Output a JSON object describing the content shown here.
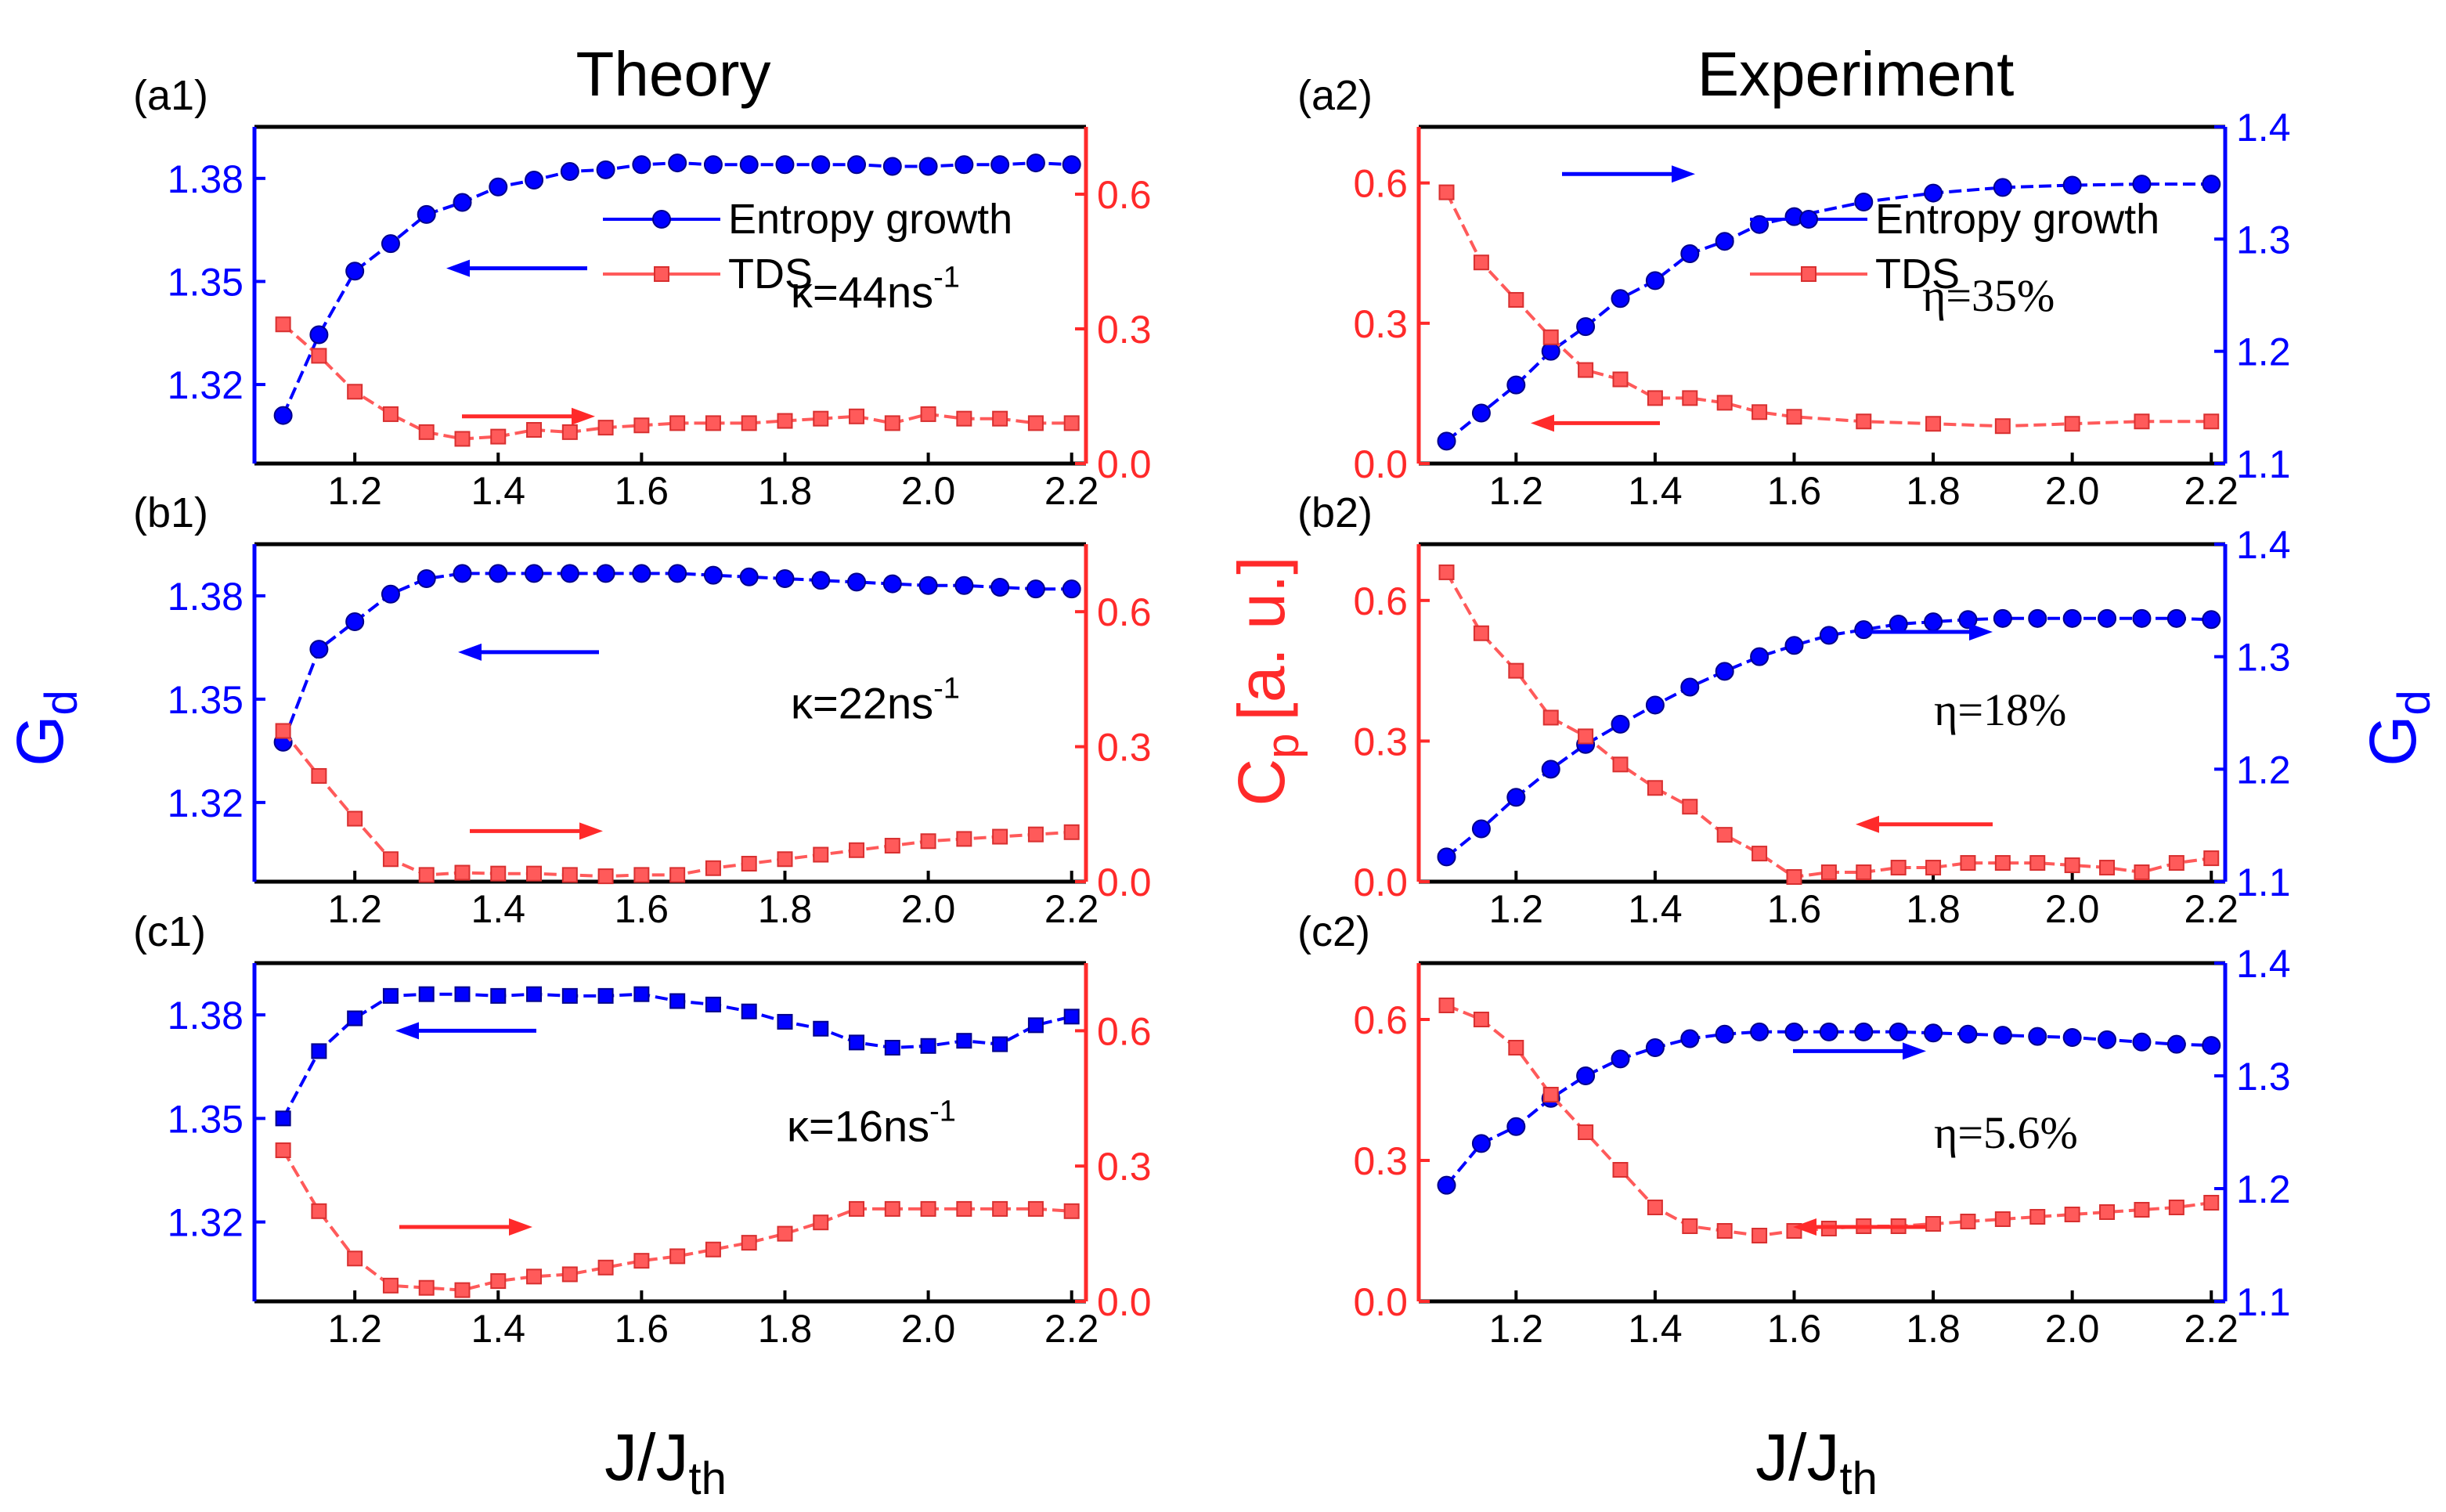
{
  "chart_data": {
    "type": "line",
    "column_titles": [
      "Theory",
      "Experiment"
    ],
    "xlabel": "J/J",
    "xlabel_sub": "th",
    "left_ylabel": "G",
    "left_ylabel_sub": "d",
    "right_ylabel": "C",
    "right_ylabel_sub": "p",
    "right_ylabel_unit": "[a. u.]",
    "panels": [
      {
        "id": "a1",
        "label": "(a1)",
        "annotation": "κ=44ns",
        "annotation_sup": "-1",
        "xlim": [
          1.06,
          2.22
        ],
        "xticks": [
          1.2,
          1.4,
          1.6,
          1.8,
          2.0,
          2.2
        ],
        "blue_axis": "left",
        "blue_ylim": [
          1.297,
          1.395
        ],
        "blue_ticks": [
          1.32,
          1.35,
          1.38
        ],
        "red_ylim": [
          0.0,
          0.75
        ],
        "red_ticks": [
          0.0,
          0.3,
          0.6
        ],
        "blue_marker": "circle",
        "legend": [
          "Entropy growth",
          "TDS"
        ],
        "series": [
          {
            "name": "Entropy growth",
            "color": "#0000ff",
            "x": [
              1.1,
              1.15,
              1.2,
              1.25,
              1.3,
              1.35,
              1.4,
              1.45,
              1.5,
              1.55,
              1.6,
              1.65,
              1.7,
              1.75,
              1.8,
              1.85,
              1.9,
              1.95,
              2.0,
              2.05,
              2.1,
              2.15,
              2.2
            ],
            "y": [
              1.311,
              1.3345,
              1.353,
              1.361,
              1.3695,
              1.373,
              1.3775,
              1.3795,
              1.382,
              1.3825,
              1.384,
              1.3845,
              1.384,
              1.384,
              1.384,
              1.384,
              1.384,
              1.3835,
              1.3835,
              1.384,
              1.384,
              1.3845,
              1.384
            ]
          },
          {
            "name": "TDS",
            "color": "#ff5a5a",
            "x": [
              1.1,
              1.15,
              1.2,
              1.25,
              1.3,
              1.35,
              1.4,
              1.45,
              1.5,
              1.55,
              1.6,
              1.65,
              1.7,
              1.75,
              1.8,
              1.85,
              1.9,
              1.95,
              2.0,
              2.05,
              2.1,
              2.15,
              2.2
            ],
            "y": [
              0.31,
              0.24,
              0.16,
              0.11,
              0.07,
              0.055,
              0.06,
              0.075,
              0.07,
              0.08,
              0.085,
              0.09,
              0.09,
              0.09,
              0.095,
              0.1,
              0.105,
              0.09,
              0.11,
              0.1,
              0.1,
              0.09,
              0.09
            ]
          }
        ]
      },
      {
        "id": "b1",
        "label": "(b1)",
        "annotation": "κ=22ns",
        "annotation_sup": "-1",
        "xlim": [
          1.06,
          2.22
        ],
        "xticks": [
          1.2,
          1.4,
          1.6,
          1.8,
          2.0,
          2.2
        ],
        "blue_axis": "left",
        "blue_ylim": [
          1.297,
          1.395
        ],
        "blue_ticks": [
          1.32,
          1.35,
          1.38
        ],
        "red_ylim": [
          0.0,
          0.75
        ],
        "red_ticks": [
          0.0,
          0.3,
          0.6
        ],
        "blue_marker": "circle",
        "series": [
          {
            "name": "Entropy growth",
            "color": "#0000ff",
            "x": [
              1.1,
              1.15,
              1.2,
              1.25,
              1.3,
              1.35,
              1.4,
              1.45,
              1.5,
              1.55,
              1.6,
              1.65,
              1.7,
              1.75,
              1.8,
              1.85,
              1.9,
              1.95,
              2.0,
              2.05,
              2.1,
              2.15,
              2.2
            ],
            "y": [
              1.3375,
              1.3645,
              1.3725,
              1.3805,
              1.385,
              1.3865,
              1.3865,
              1.3865,
              1.3865,
              1.3865,
              1.3865,
              1.3865,
              1.386,
              1.3855,
              1.385,
              1.3845,
              1.384,
              1.3835,
              1.383,
              1.383,
              1.3825,
              1.382,
              1.382
            ]
          },
          {
            "name": "TDS",
            "color": "#ff5a5a",
            "x": [
              1.1,
              1.15,
              1.2,
              1.25,
              1.3,
              1.35,
              1.4,
              1.45,
              1.5,
              1.55,
              1.6,
              1.65,
              1.7,
              1.75,
              1.8,
              1.85,
              1.9,
              1.95,
              2.0,
              2.05,
              2.1,
              2.15,
              2.2
            ],
            "y": [
              0.335,
              0.235,
              0.14,
              0.05,
              0.015,
              0.02,
              0.018,
              0.018,
              0.015,
              0.012,
              0.015,
              0.015,
              0.03,
              0.04,
              0.05,
              0.06,
              0.07,
              0.08,
              0.09,
              0.095,
              0.1,
              0.105,
              0.11
            ]
          }
        ]
      },
      {
        "id": "c1",
        "label": "(c1)",
        "annotation": "κ=16ns",
        "annotation_sup": "-1",
        "xlim": [
          1.06,
          2.22
        ],
        "xticks": [
          1.2,
          1.4,
          1.6,
          1.8,
          2.0,
          2.2
        ],
        "blue_axis": "left",
        "blue_ylim": [
          1.297,
          1.395
        ],
        "blue_ticks": [
          1.32,
          1.35,
          1.38
        ],
        "red_ylim": [
          0.0,
          0.75
        ],
        "red_ticks": [
          0.0,
          0.3,
          0.6
        ],
        "blue_marker": "square",
        "series": [
          {
            "name": "Entropy growth",
            "color": "#0000ff",
            "x": [
              1.1,
              1.15,
              1.2,
              1.25,
              1.3,
              1.35,
              1.4,
              1.45,
              1.5,
              1.55,
              1.6,
              1.65,
              1.7,
              1.75,
              1.8,
              1.85,
              1.9,
              1.95,
              2.0,
              2.05,
              2.1,
              2.15,
              2.2
            ],
            "y": [
              1.35,
              1.3695,
              1.379,
              1.3855,
              1.386,
              1.386,
              1.3855,
              1.386,
              1.3855,
              1.3855,
              1.386,
              1.384,
              1.383,
              1.381,
              1.378,
              1.376,
              1.372,
              1.3705,
              1.371,
              1.3725,
              1.3715,
              1.377,
              1.3795
            ]
          },
          {
            "name": "TDS",
            "color": "#ff5a5a",
            "x": [
              1.1,
              1.15,
              1.2,
              1.25,
              1.3,
              1.35,
              1.4,
              1.45,
              1.5,
              1.55,
              1.6,
              1.65,
              1.7,
              1.75,
              1.8,
              1.85,
              1.9,
              1.95,
              2.0,
              2.05,
              2.1,
              2.15,
              2.2
            ],
            "y": [
              0.335,
              0.2,
              0.095,
              0.035,
              0.03,
              0.025,
              0.045,
              0.055,
              0.06,
              0.075,
              0.09,
              0.1,
              0.115,
              0.13,
              0.15,
              0.175,
              0.205,
              0.205,
              0.205,
              0.205,
              0.205,
              0.205,
              0.2
            ]
          }
        ]
      },
      {
        "id": "a2",
        "label": "(a2)",
        "annotation": "η=35%",
        "xlim": [
          1.06,
          2.22
        ],
        "xticks": [
          1.2,
          1.4,
          1.6,
          1.8,
          2.0,
          2.2
        ],
        "blue_axis": "right",
        "blue_ylim": [
          1.1,
          1.4
        ],
        "blue_ticks": [
          1.1,
          1.2,
          1.3,
          1.4
        ],
        "red_ylim": [
          0.0,
          0.72
        ],
        "red_ticks": [
          0.0,
          0.3,
          0.6
        ],
        "blue_marker": "circle",
        "legend": [
          "Entropy growth",
          "TDS"
        ],
        "series": [
          {
            "name": "Entropy growth",
            "color": "#0000ff",
            "x": [
              1.1,
              1.15,
              1.2,
              1.25,
              1.3,
              1.35,
              1.4,
              1.45,
              1.5,
              1.55,
              1.6,
              1.7,
              1.8,
              1.9,
              2.0,
              2.1,
              2.2
            ],
            "y": [
              1.12,
              1.145,
              1.17,
              1.2,
              1.222,
              1.247,
              1.263,
              1.287,
              1.298,
              1.313,
              1.32,
              1.333,
              1.341,
              1.346,
              1.348,
              1.349,
              1.349
            ]
          },
          {
            "name": "TDS",
            "color": "#ff5a5a",
            "x": [
              1.1,
              1.15,
              1.2,
              1.25,
              1.3,
              1.35,
              1.4,
              1.45,
              1.5,
              1.55,
              1.6,
              1.7,
              1.8,
              1.9,
              2.0,
              2.1,
              2.2
            ],
            "y": [
              0.58,
              0.43,
              0.35,
              0.27,
              0.2,
              0.18,
              0.14,
              0.14,
              0.13,
              0.11,
              0.1,
              0.09,
              0.085,
              0.08,
              0.085,
              0.09,
              0.09
            ]
          }
        ]
      },
      {
        "id": "b2",
        "label": "(b2)",
        "annotation": "η=18%",
        "xlim": [
          1.06,
          2.22
        ],
        "xticks": [
          1.2,
          1.4,
          1.6,
          1.8,
          2.0,
          2.2
        ],
        "blue_axis": "right",
        "blue_ylim": [
          1.1,
          1.4
        ],
        "blue_ticks": [
          1.1,
          1.2,
          1.3,
          1.4
        ],
        "red_ylim": [
          0.0,
          0.72
        ],
        "red_ticks": [
          0.0,
          0.3,
          0.6
        ],
        "blue_marker": "circle",
        "series": [
          {
            "name": "Entropy growth",
            "color": "#0000ff",
            "x": [
              1.1,
              1.15,
              1.2,
              1.25,
              1.3,
              1.35,
              1.4,
              1.45,
              1.5,
              1.55,
              1.6,
              1.65,
              1.7,
              1.75,
              1.8,
              1.85,
              1.9,
              1.95,
              2.0,
              2.05,
              2.1,
              2.15,
              2.2
            ],
            "y": [
              1.122,
              1.147,
              1.175,
              1.2,
              1.222,
              1.24,
              1.257,
              1.273,
              1.287,
              1.3,
              1.31,
              1.319,
              1.324,
              1.329,
              1.331,
              1.333,
              1.334,
              1.334,
              1.334,
              1.334,
              1.334,
              1.334,
              1.333
            ]
          },
          {
            "name": "TDS",
            "color": "#ff5a5a",
            "x": [
              1.1,
              1.15,
              1.2,
              1.25,
              1.3,
              1.35,
              1.4,
              1.45,
              1.5,
              1.55,
              1.6,
              1.65,
              1.7,
              1.75,
              1.8,
              1.85,
              1.9,
              1.95,
              2.0,
              2.05,
              2.1,
              2.15,
              2.2
            ],
            "y": [
              0.66,
              0.53,
              0.45,
              0.35,
              0.31,
              0.25,
              0.2,
              0.16,
              0.1,
              0.06,
              0.01,
              0.02,
              0.02,
              0.03,
              0.03,
              0.04,
              0.04,
              0.04,
              0.035,
              0.03,
              0.02,
              0.04,
              0.05
            ]
          }
        ]
      },
      {
        "id": "c2",
        "label": "(c2)",
        "annotation": "η=5.6%",
        "xlim": [
          1.06,
          2.22
        ],
        "xticks": [
          1.2,
          1.4,
          1.6,
          1.8,
          2.0,
          2.2
        ],
        "blue_axis": "right",
        "blue_ylim": [
          1.1,
          1.4
        ],
        "blue_ticks": [
          1.1,
          1.2,
          1.3,
          1.4
        ],
        "red_ylim": [
          0.0,
          0.72
        ],
        "red_ticks": [
          0.0,
          0.3,
          0.6
        ],
        "blue_marker": "circle",
        "series": [
          {
            "name": "Entropy growth",
            "color": "#0000ff",
            "x": [
              1.1,
              1.15,
              1.2,
              1.25,
              1.3,
              1.35,
              1.4,
              1.45,
              1.5,
              1.55,
              1.6,
              1.65,
              1.7,
              1.75,
              1.8,
              1.85,
              1.9,
              1.95,
              2.0,
              2.05,
              2.1,
              2.15,
              2.2
            ],
            "y": [
              1.203,
              1.24,
              1.255,
              1.28,
              1.3,
              1.315,
              1.325,
              1.333,
              1.337,
              1.339,
              1.339,
              1.339,
              1.339,
              1.339,
              1.338,
              1.337,
              1.336,
              1.335,
              1.334,
              1.332,
              1.33,
              1.328,
              1.327
            ]
          },
          {
            "name": "TDS",
            "color": "#ff5a5a",
            "x": [
              1.1,
              1.15,
              1.2,
              1.25,
              1.3,
              1.35,
              1.4,
              1.45,
              1.5,
              1.55,
              1.6,
              1.65,
              1.7,
              1.75,
              1.8,
              1.85,
              1.9,
              1.95,
              2.0,
              2.05,
              2.1,
              2.15,
              2.2
            ],
            "y": [
              0.63,
              0.6,
              0.54,
              0.44,
              0.36,
              0.28,
              0.2,
              0.16,
              0.15,
              0.14,
              0.15,
              0.155,
              0.16,
              0.16,
              0.165,
              0.17,
              0.175,
              0.18,
              0.185,
              0.19,
              0.195,
              0.2,
              0.21
            ]
          }
        ]
      }
    ]
  }
}
